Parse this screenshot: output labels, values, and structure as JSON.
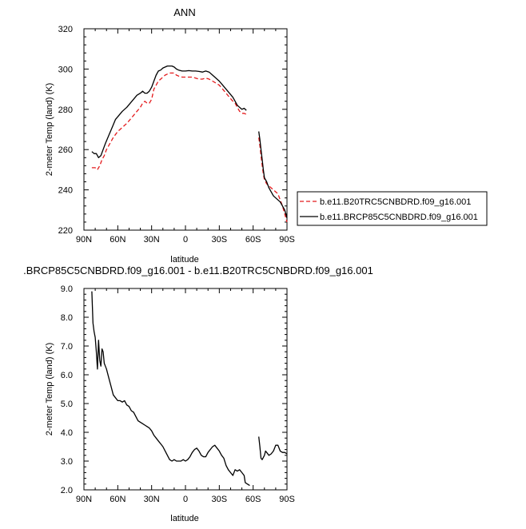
{
  "figure": {
    "panel1_title": "ANN",
    "panel2_title": ".BRCP85C5CNBDRD.f09_g16.001 - b.e11.B20TRC5CNBDRD.f09_g16.001"
  },
  "chart_data": [
    {
      "type": "line",
      "title": "ANN",
      "xlabel": "latitude",
      "ylabel": "2-meter Temp (land) (K)",
      "xlim": [
        90,
        -90
      ],
      "ylim": [
        220,
        320
      ],
      "x_ticks": [
        90,
        60,
        30,
        0,
        -30,
        -60,
        -90
      ],
      "x_tick_labels": [
        "90N",
        "60N",
        "30N",
        "0",
        "30S",
        "60S",
        "90S"
      ],
      "y_ticks": [
        220,
        240,
        260,
        280,
        300,
        320
      ],
      "y_tick_labels": [
        "220",
        "240",
        "260",
        "280",
        "300",
        "320"
      ],
      "grid": false,
      "legend": "right, outside plot",
      "series": [
        {
          "name": "b.e11.B20TRC5CNBDRD.f09_g16.001",
          "color": "#e41a1c",
          "dash": "dashed",
          "segments": [
            [
              [
                83,
                251
              ],
              [
                80,
                251
              ],
              [
                78,
                250
              ],
              [
                76,
                252
              ],
              [
                74,
                255
              ],
              [
                72,
                257
              ],
              [
                70,
                260
              ],
              [
                67,
                263
              ],
              [
                64,
                266
              ],
              [
                60,
                269
              ],
              [
                56,
                271
              ],
              [
                52,
                273
              ],
              [
                49,
                275
              ],
              [
                46,
                277
              ],
              [
                43,
                279
              ],
              [
                40,
                281
              ],
              [
                38,
                283
              ],
              [
                36,
                284
              ],
              [
                34,
                283
              ],
              [
                32,
                283
              ],
              [
                30,
                285
              ],
              [
                28,
                290
              ],
              [
                26,
                292
              ],
              [
                24,
                294
              ],
              [
                22,
                295
              ],
              [
                20,
                296
              ],
              [
                18,
                297
              ],
              [
                16,
                297.5
              ],
              [
                14,
                298
              ],
              [
                12,
                298
              ],
              [
                10,
                298
              ],
              [
                8,
                297
              ],
              [
                6,
                296.5
              ],
              [
                3,
                296
              ],
              [
                0,
                296
              ],
              [
                -3,
                296
              ],
              [
                -6,
                296
              ],
              [
                -9,
                295.5
              ],
              [
                -12,
                295
              ],
              [
                -15,
                295
              ],
              [
                -18,
                295.5
              ],
              [
                -21,
                295
              ],
              [
                -24,
                294
              ],
              [
                -27,
                293
              ],
              [
                -30,
                292
              ],
              [
                -33,
                290
              ],
              [
                -36,
                288
              ],
              [
                -39,
                286
              ],
              [
                -42,
                284
              ],
              [
                -44,
                283
              ],
              [
                -46,
                281
              ],
              [
                -48,
                279
              ],
              [
                -50,
                278
              ],
              [
                -52,
                278
              ],
              [
                -54,
                277.5
              ]
            ],
            [
              [
                -65,
                266
              ],
              [
                -66,
                262
              ],
              [
                -67,
                257
              ],
              [
                -68,
                252
              ],
              [
                -69,
                248
              ],
              [
                -70,
                245
              ],
              [
                -72,
                243
              ],
              [
                -74,
                242
              ],
              [
                -76,
                241
              ],
              [
                -78,
                240
              ],
              [
                -80,
                239
              ],
              [
                -82,
                238
              ],
              [
                -84,
                235
              ],
              [
                -86,
                232
              ],
              [
                -88,
                228
              ],
              [
                -90,
                224
              ]
            ]
          ]
        },
        {
          "name": "b.e11.BRCP85C5CNBDRD.f09_g16.001",
          "color": "#000000",
          "dash": "solid",
          "segments": [
            [
              [
                83,
                259
              ],
              [
                81,
                258
              ],
              [
                79,
                258
              ],
              [
                77,
                256
              ],
              [
                75,
                257
              ],
              [
                73,
                260
              ],
              [
                71,
                263
              ],
              [
                68,
                267
              ],
              [
                65,
                271
              ],
              [
                62,
                275
              ],
              [
                59,
                277
              ],
              [
                56,
                279
              ],
              [
                52,
                281
              ],
              [
                49,
                283
              ],
              [
                46,
                285
              ],
              [
                43,
                287
              ],
              [
                40,
                288
              ],
              [
                38,
                289
              ],
              [
                36,
                288
              ],
              [
                34,
                288
              ],
              [
                32,
                289
              ],
              [
                30,
                291
              ],
              [
                28,
                294
              ],
              [
                26,
                297
              ],
              [
                24,
                299
              ],
              [
                22,
                299.5
              ],
              [
                20,
                300.5
              ],
              [
                18,
                301
              ],
              [
                16,
                301.5
              ],
              [
                14,
                301.5
              ],
              [
                12,
                301.5
              ],
              [
                10,
                301
              ],
              [
                8,
                300
              ],
              [
                6,
                299.5
              ],
              [
                3,
                299
              ],
              [
                0,
                299
              ],
              [
                -3,
                299.2
              ],
              [
                -6,
                299
              ],
              [
                -9,
                299
              ],
              [
                -12,
                298.8
              ],
              [
                -15,
                298.5
              ],
              [
                -18,
                299
              ],
              [
                -21,
                298.5
              ],
              [
                -24,
                297
              ],
              [
                -27,
                295.5
              ],
              [
                -30,
                294
              ],
              [
                -33,
                292
              ],
              [
                -36,
                290
              ],
              [
                -39,
                288
              ],
              [
                -42,
                286
              ],
              [
                -44,
                284
              ],
              [
                -46,
                282
              ],
              [
                -48,
                281
              ],
              [
                -50,
                280
              ],
              [
                -52,
                280.5
              ],
              [
                -54,
                279.5
              ]
            ],
            [
              [
                -65,
                269
              ],
              [
                -66,
                265
              ],
              [
                -67,
                260
              ],
              [
                -68,
                255
              ],
              [
                -69,
                250
              ],
              [
                -70,
                246
              ],
              [
                -72,
                244
              ],
              [
                -74,
                241
              ],
              [
                -76,
                239
              ],
              [
                -78,
                237
              ],
              [
                -80,
                236
              ],
              [
                -82,
                235
              ],
              [
                -84,
                234
              ],
              [
                -86,
                232
              ],
              [
                -88,
                230
              ],
              [
                -90,
                226
              ]
            ]
          ]
        }
      ]
    },
    {
      "type": "line",
      "title": ".BRCP85C5CNBDRD.f09_g16.001 - b.e11.B20TRC5CNBDRD.f09_g16.001",
      "xlabel": "latitude",
      "ylabel": "2-meter Temp (land) (K)",
      "xlim": [
        90,
        -90
      ],
      "ylim": [
        2.0,
        9.0
      ],
      "x_ticks": [
        90,
        60,
        30,
        0,
        -30,
        -60,
        -90
      ],
      "x_tick_labels": [
        "90N",
        "60N",
        "30N",
        "0",
        "30S",
        "60S",
        "90S"
      ],
      "y_ticks": [
        2.0,
        3.0,
        4.0,
        5.0,
        6.0,
        7.0,
        8.0,
        9.0
      ],
      "y_tick_labels": [
        "2.0",
        "3.0",
        "4.0",
        "5.0",
        "6.0",
        "7.0",
        "8.0",
        "9.0"
      ],
      "grid": false,
      "series": [
        {
          "color": "#000000",
          "dash": "solid",
          "segments": [
            [
              [
                83,
                8.9
              ],
              [
                82,
                7.8
              ],
              [
                81,
                7.5
              ],
              [
                80,
                7.3
              ],
              [
                79,
                6.8
              ],
              [
                78,
                6.2
              ],
              [
                77,
                7.2
              ],
              [
                76,
                6.5
              ],
              [
                75,
                6.3
              ],
              [
                74,
                6.9
              ],
              [
                73,
                6.8
              ],
              [
                72,
                6.4
              ],
              [
                71,
                6.3
              ],
              [
                70,
                6.2
              ],
              [
                68,
                5.9
              ],
              [
                66,
                5.6
              ],
              [
                64,
                5.3
              ],
              [
                62,
                5.2
              ],
              [
                60,
                5.1
              ],
              [
                58,
                5.1
              ],
              [
                56,
                5.05
              ],
              [
                54,
                5.1
              ],
              [
                52,
                4.95
              ],
              [
                50,
                4.9
              ],
              [
                48,
                4.75
              ],
              [
                46,
                4.7
              ],
              [
                44,
                4.55
              ],
              [
                42,
                4.4
              ],
              [
                40,
                4.35
              ],
              [
                38,
                4.3
              ],
              [
                36,
                4.25
              ],
              [
                34,
                4.2
              ],
              [
                32,
                4.15
              ],
              [
                30,
                4.05
              ],
              [
                28,
                3.9
              ],
              [
                26,
                3.8
              ],
              [
                24,
                3.7
              ],
              [
                22,
                3.6
              ],
              [
                20,
                3.5
              ],
              [
                18,
                3.35
              ],
              [
                16,
                3.2
              ],
              [
                14,
                3.05
              ],
              [
                12,
                3.0
              ],
              [
                10,
                3.05
              ],
              [
                8,
                3.0
              ],
              [
                6,
                3.0
              ],
              [
                4,
                3.0
              ],
              [
                2,
                3.05
              ],
              [
                0,
                3.0
              ],
              [
                -2,
                3.05
              ],
              [
                -4,
                3.15
              ],
              [
                -6,
                3.3
              ],
              [
                -8,
                3.4
              ],
              [
                -10,
                3.45
              ],
              [
                -12,
                3.35
              ],
              [
                -14,
                3.2
              ],
              [
                -16,
                3.15
              ],
              [
                -18,
                3.15
              ],
              [
                -20,
                3.3
              ],
              [
                -22,
                3.4
              ],
              [
                -24,
                3.5
              ],
              [
                -26,
                3.55
              ],
              [
                -28,
                3.45
              ],
              [
                -30,
                3.35
              ],
              [
                -32,
                3.2
              ],
              [
                -34,
                3.1
              ],
              [
                -36,
                2.85
              ],
              [
                -38,
                2.7
              ],
              [
                -40,
                2.6
              ],
              [
                -42,
                2.5
              ],
              [
                -44,
                2.7
              ],
              [
                -46,
                2.65
              ],
              [
                -48,
                2.7
              ],
              [
                -50,
                2.6
              ],
              [
                -52,
                2.5
              ],
              [
                -53,
                2.25
              ],
              [
                -55,
                2.2
              ],
              [
                -57,
                2.15
              ]
            ],
            [
              [
                -65,
                3.85
              ],
              [
                -66,
                3.5
              ],
              [
                -67,
                3.1
              ],
              [
                -68,
                3.05
              ],
              [
                -70,
                3.2
              ],
              [
                -71,
                3.35
              ],
              [
                -72,
                3.3
              ],
              [
                -74,
                3.2
              ],
              [
                -76,
                3.25
              ],
              [
                -78,
                3.35
              ],
              [
                -80,
                3.55
              ],
              [
                -82,
                3.55
              ],
              [
                -84,
                3.35
              ],
              [
                -86,
                3.3
              ],
              [
                -88,
                3.3
              ],
              [
                -90,
                3.25
              ]
            ]
          ]
        }
      ]
    }
  ]
}
